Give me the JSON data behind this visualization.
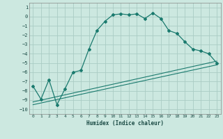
{
  "title": "",
  "xlabel": "Humidex (Indice chaleur)",
  "background_color": "#cce8e0",
  "grid_color": "#aaccC4",
  "line_color": "#1a7a6e",
  "xlim": [
    -0.5,
    23.5
  ],
  "ylim": [
    -10.5,
    1.5
  ],
  "yticks": [
    1,
    0,
    -1,
    -2,
    -3,
    -4,
    -5,
    -6,
    -7,
    -8,
    -9,
    -10
  ],
  "xticks": [
    0,
    1,
    2,
    3,
    4,
    5,
    6,
    7,
    8,
    9,
    10,
    11,
    12,
    13,
    14,
    15,
    16,
    17,
    18,
    19,
    20,
    21,
    22,
    23
  ],
  "series1_x": [
    0,
    1,
    2,
    3,
    4,
    5,
    6,
    7,
    8,
    9,
    10,
    11,
    12,
    13,
    14,
    15,
    16,
    17,
    18,
    19,
    20,
    21,
    22,
    23
  ],
  "series1_y": [
    -7.5,
    -8.9,
    -6.8,
    -9.5,
    -7.8,
    -6.0,
    -5.8,
    -3.5,
    -1.5,
    -0.5,
    0.2,
    0.3,
    0.2,
    0.3,
    -0.2,
    0.4,
    -0.2,
    -1.5,
    -1.8,
    -2.7,
    -3.5,
    -3.7,
    -4.0,
    -5.0
  ],
  "series2_x": [
    0,
    23
  ],
  "series2_y": [
    -9.2,
    -4.8
  ],
  "series3_x": [
    0,
    23
  ],
  "series3_y": [
    -9.5,
    -5.2
  ]
}
